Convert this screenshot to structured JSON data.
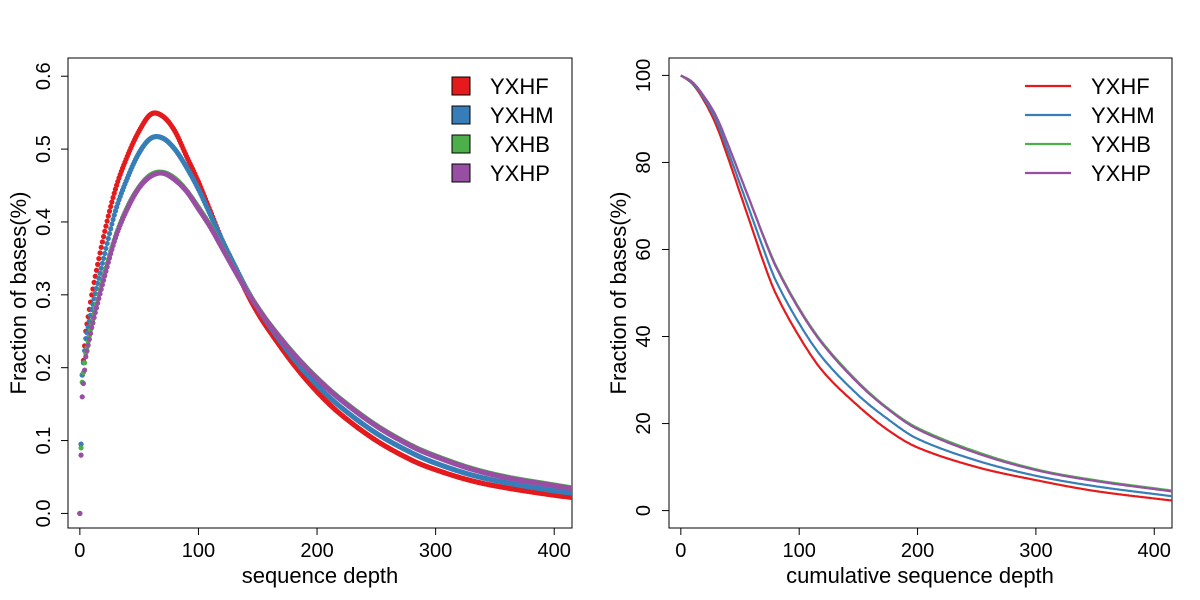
{
  "colors": {
    "YXHF": "#E41A1C",
    "YXHM": "#377EB8",
    "YXHB": "#4DAF4A",
    "YXHP": "#984EA3"
  },
  "chart_data": [
    {
      "type": "scatter",
      "xlabel": "sequence depth",
      "ylabel": "Fraction of bases(%)",
      "xlim": [
        -10,
        415
      ],
      "ylim": [
        -0.02,
        0.625
      ],
      "xticks": [
        0,
        100,
        200,
        300,
        400
      ],
      "yticks": [
        0.0,
        0.1,
        0.2,
        0.3,
        0.4,
        0.5,
        0.6
      ],
      "ytick_labels": [
        "0.0",
        "0.1",
        "0.2",
        "0.3",
        "0.4",
        "0.5",
        "0.6"
      ],
      "legend": {
        "position": "top-right",
        "symbol": "square",
        "entries": [
          "YXHF",
          "YXHM",
          "YXHB",
          "YXHP"
        ]
      },
      "series": [
        {
          "name": "YXHF",
          "color": "#E41A1C",
          "x": [
            0,
            2,
            5,
            10,
            20,
            30,
            40,
            50,
            60,
            70,
            80,
            90,
            100,
            110,
            120,
            130,
            140,
            150,
            160,
            180,
            200,
            220,
            250,
            280,
            300,
            330,
            360,
            400,
            415
          ],
          "y": [
            0.0,
            0.19,
            0.25,
            0.3,
            0.38,
            0.445,
            0.49,
            0.525,
            0.548,
            0.545,
            0.525,
            0.49,
            0.455,
            0.415,
            0.375,
            0.34,
            0.305,
            0.275,
            0.25,
            0.205,
            0.167,
            0.136,
            0.1,
            0.073,
            0.06,
            0.045,
            0.035,
            0.025,
            0.022
          ]
        },
        {
          "name": "YXHM",
          "color": "#377EB8",
          "x": [
            0,
            2,
            5,
            10,
            20,
            30,
            40,
            50,
            60,
            70,
            80,
            90,
            100,
            110,
            120,
            130,
            140,
            150,
            160,
            180,
            200,
            220,
            250,
            280,
            300,
            330,
            360,
            400,
            415
          ],
          "y": [
            0.0,
            0.19,
            0.24,
            0.28,
            0.35,
            0.415,
            0.46,
            0.495,
            0.515,
            0.515,
            0.5,
            0.475,
            0.445,
            0.41,
            0.375,
            0.342,
            0.31,
            0.282,
            0.257,
            0.213,
            0.176,
            0.146,
            0.11,
            0.083,
            0.069,
            0.053,
            0.042,
            0.031,
            0.028
          ]
        },
        {
          "name": "YXHB",
          "color": "#4DAF4A",
          "x": [
            0,
            2,
            5,
            10,
            20,
            30,
            40,
            50,
            60,
            70,
            80,
            90,
            100,
            110,
            120,
            130,
            140,
            150,
            160,
            180,
            200,
            220,
            250,
            280,
            300,
            330,
            360,
            400,
            415
          ],
          "y": [
            0.0,
            0.18,
            0.22,
            0.26,
            0.325,
            0.38,
            0.42,
            0.448,
            0.465,
            0.468,
            0.46,
            0.443,
            0.42,
            0.395,
            0.365,
            0.336,
            0.308,
            0.283,
            0.26,
            0.22,
            0.186,
            0.157,
            0.121,
            0.093,
            0.079,
            0.062,
            0.05,
            0.039,
            0.035
          ]
        },
        {
          "name": "YXHP",
          "color": "#984EA3",
          "x": [
            0,
            2,
            5,
            10,
            20,
            30,
            40,
            50,
            60,
            70,
            80,
            90,
            100,
            110,
            120,
            130,
            140,
            150,
            160,
            180,
            200,
            220,
            250,
            280,
            300,
            330,
            360,
            400,
            415
          ],
          "y": [
            0.0,
            0.16,
            0.215,
            0.255,
            0.32,
            0.378,
            0.418,
            0.447,
            0.463,
            0.467,
            0.458,
            0.442,
            0.418,
            0.393,
            0.364,
            0.335,
            0.307,
            0.282,
            0.259,
            0.219,
            0.185,
            0.156,
            0.12,
            0.092,
            0.078,
            0.061,
            0.049,
            0.038,
            0.034
          ]
        }
      ]
    },
    {
      "type": "line",
      "xlabel": "cumulative sequence depth",
      "ylabel": "Fraction of bases(%)",
      "xlim": [
        -10,
        415
      ],
      "ylim": [
        -4,
        104
      ],
      "xticks": [
        0,
        100,
        200,
        300,
        400
      ],
      "yticks": [
        0,
        20,
        40,
        60,
        80,
        100
      ],
      "ytick_labels": [
        "0",
        "20",
        "40",
        "60",
        "80",
        "100"
      ],
      "legend": {
        "position": "top-right",
        "symbol": "line",
        "entries": [
          "YXHF",
          "YXHM",
          "YXHB",
          "YXHP"
        ]
      },
      "series": [
        {
          "name": "YXHF",
          "color": "#E41A1C",
          "x": [
            0,
            10,
            20,
            30,
            40,
            50,
            60,
            70,
            80,
            100,
            120,
            150,
            175,
            200,
            250,
            300,
            350,
            415
          ],
          "y": [
            100,
            98,
            94,
            88.5,
            81,
            73,
            65,
            57,
            50,
            40,
            32,
            24,
            18.5,
            14.5,
            10,
            7,
            4.5,
            2.3
          ]
        },
        {
          "name": "YXHM",
          "color": "#377EB8",
          "x": [
            0,
            10,
            20,
            30,
            40,
            50,
            60,
            70,
            80,
            100,
            120,
            150,
            175,
            200,
            250,
            300,
            350,
            415
          ],
          "y": [
            100,
            98.2,
            94.5,
            89.5,
            82.5,
            75,
            67.5,
            60,
            53,
            43,
            35,
            26.5,
            21,
            16.5,
            11.5,
            8,
            5.6,
            3.3
          ]
        },
        {
          "name": "YXHB",
          "color": "#4DAF4A",
          "x": [
            0,
            10,
            20,
            30,
            40,
            50,
            60,
            70,
            80,
            100,
            120,
            150,
            175,
            200,
            250,
            300,
            350,
            415
          ],
          "y": [
            100,
            98.4,
            95,
            90.5,
            84,
            77,
            70,
            63,
            56.5,
            46.5,
            38.5,
            29.5,
            23.5,
            19,
            13.5,
            9.5,
            7,
            4.6
          ]
        },
        {
          "name": "YXHP",
          "color": "#984EA3",
          "x": [
            0,
            10,
            20,
            30,
            40,
            50,
            60,
            70,
            80,
            100,
            120,
            150,
            175,
            200,
            250,
            300,
            350,
            415
          ],
          "y": [
            100,
            98.4,
            95,
            90.5,
            84,
            77,
            70,
            62.8,
            56.2,
            46.2,
            38.2,
            29.2,
            23.3,
            18.7,
            13.2,
            9.3,
            6.8,
            4.4
          ]
        }
      ]
    }
  ]
}
